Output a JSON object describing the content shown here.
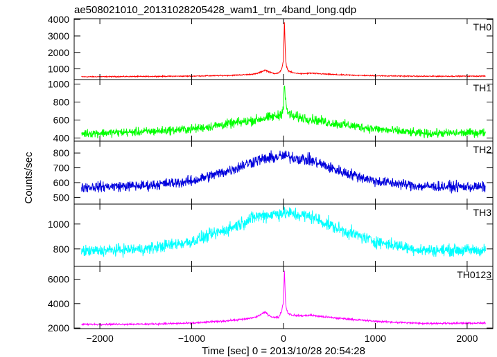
{
  "title": "ae508021010_20131028205428_wam1_trn_4band_long.qdp",
  "xlabel": "Time [sec] 0 = 2013/10/28 20:54:28",
  "ylabel": "Counts/sec",
  "chart_data": {
    "type": "line",
    "title": "ae508021010_20131028205428_wam1_trn_4band_long.qdp",
    "xlabel": "Time [sec] 0 = 2013/10/28 20:54:28",
    "ylabel": "Counts/sec",
    "xlim": [
      -2280,
      2280
    ],
    "x_ticks": [
      -2000,
      -1000,
      0,
      1000,
      2000
    ],
    "x_tick_labels": [
      "−2000",
      "−1000",
      "0",
      "1000",
      "2000"
    ],
    "grid": false,
    "panels": [
      {
        "name": "TH0",
        "color": "#ff0000",
        "ylim": [
          350,
          4050
        ],
        "y_ticks": [
          1000,
          2000,
          3000,
          4000
        ],
        "noise": 25,
        "series": {
          "x": [
            -2200,
            -1500,
            -1000,
            -600,
            -400,
            -300,
            -250,
            -200,
            -150,
            -100,
            -50,
            -20,
            0,
            10,
            20,
            30,
            50,
            100,
            200,
            300,
            400,
            600,
            1000,
            1500,
            2200
          ],
          "y": [
            520,
            540,
            560,
            600,
            650,
            700,
            800,
            930,
            800,
            720,
            740,
            1000,
            1500,
            3950,
            1900,
            1200,
            900,
            760,
            700,
            740,
            700,
            640,
            580,
            550,
            560
          ]
        }
      },
      {
        "name": "TH1",
        "color": "#00ff00",
        "ylim": [
          365,
          1050
        ],
        "y_ticks": [
          400,
          600,
          800,
          1000
        ],
        "noise": 40,
        "series": {
          "x": [
            -2200,
            -1500,
            -1000,
            -500,
            -200,
            -50,
            -20,
            0,
            10,
            20,
            40,
            100,
            300,
            500,
            1000,
            1500,
            2200
          ],
          "y": [
            450,
            470,
            500,
            570,
            620,
            650,
            680,
            760,
            1020,
            830,
            690,
            640,
            610,
            570,
            500,
            450,
            460
          ]
        }
      },
      {
        "name": "TH2",
        "color": "#0000dd",
        "ylim": [
          455,
          880
        ],
        "y_ticks": [
          500,
          600,
          700,
          800
        ],
        "noise": 30,
        "series": {
          "x": [
            -2200,
            -1500,
            -1000,
            -600,
            -300,
            0,
            300,
            600,
            1000,
            1500,
            2200
          ],
          "y": [
            570,
            580,
            610,
            680,
            750,
            780,
            750,
            680,
            610,
            575,
            570
          ]
        }
      },
      {
        "name": "TH3",
        "color": "#00ffff",
        "ylim": [
          660,
          1160
        ],
        "y_ticks": [
          800,
          1000
        ],
        "noise": 40,
        "series": {
          "x": [
            -2200,
            -1500,
            -1000,
            -600,
            -300,
            0,
            300,
            600,
            1000,
            1500,
            2200
          ],
          "y": [
            780,
            800,
            860,
            960,
            1060,
            1090,
            1060,
            960,
            860,
            790,
            790
          ]
        }
      },
      {
        "name": "TH0123",
        "color": "#ff00ff",
        "ylim": [
          1950,
          7050
        ],
        "y_ticks": [
          2000,
          4000,
          6000
        ],
        "noise": 60,
        "series": {
          "x": [
            -2200,
            -1500,
            -1000,
            -600,
            -400,
            -300,
            -200,
            -150,
            -100,
            -50,
            -20,
            0,
            10,
            20,
            30,
            50,
            100,
            200,
            300,
            400,
            600,
            1000,
            1500,
            2200
          ],
          "y": [
            2300,
            2320,
            2400,
            2600,
            2750,
            2900,
            3300,
            3000,
            2850,
            2900,
            3400,
            4200,
            6800,
            4500,
            3600,
            3200,
            3050,
            3000,
            3050,
            2950,
            2800,
            2550,
            2380,
            2400
          ]
        }
      }
    ]
  }
}
